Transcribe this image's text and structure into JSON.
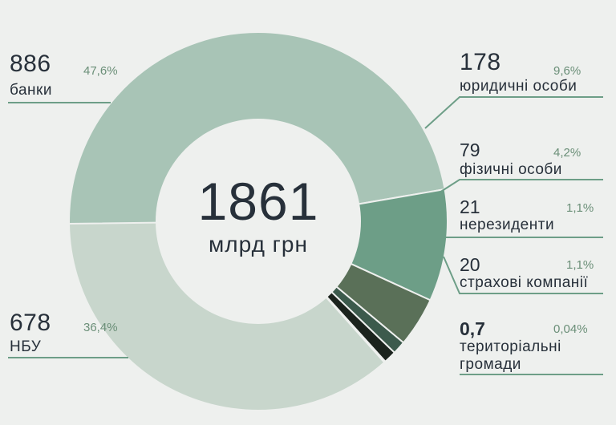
{
  "center": {
    "total": "1861",
    "unit": "млрд грн"
  },
  "chart_data": {
    "type": "pie",
    "total": 1861,
    "unit": "млрд грн",
    "slices": [
      {
        "label": "банки",
        "value": 886,
        "value_text": "886",
        "percent_text": "47,6%",
        "color": "#a8c4b6"
      },
      {
        "label": "юридичні особи",
        "value": 178,
        "value_text": "178",
        "percent_text": "9,6%",
        "color": "#6d9e87"
      },
      {
        "label": "фізичні особи",
        "value": 79,
        "value_text": "79",
        "percent_text": "4,2%",
        "color": "#5a7058"
      },
      {
        "label": "нерезиденти",
        "value": 21,
        "value_text": "21",
        "percent_text": "1,1%",
        "color": "#3c5a4c"
      },
      {
        "label": "страхові компанії",
        "value": 20,
        "value_text": "20",
        "percent_text": "1,1%",
        "color": "#1b231d"
      },
      {
        "label": "територіальні громади",
        "value": 0.7,
        "value_text": "0,7",
        "percent_text": "0,04%",
        "color": "#1b231d"
      },
      {
        "label": "НБУ",
        "value": 678,
        "value_text": "678",
        "percent_text": "36,4%",
        "color": "#c8d6cc"
      }
    ]
  },
  "labels": {
    "bank_name": "банки",
    "legal_name": "юридичні особи",
    "phys_name": "фізичні особи",
    "nonres_name": "нерезиденти",
    "ins_name": "страхові компанії",
    "terr_name_1": "територіальні",
    "terr_name_2": "громади",
    "nbu_name": "НБУ"
  },
  "colors": {
    "accent_line": "#6d9e87",
    "background": "#eef0ee",
    "hole": "#eef0ee"
  }
}
